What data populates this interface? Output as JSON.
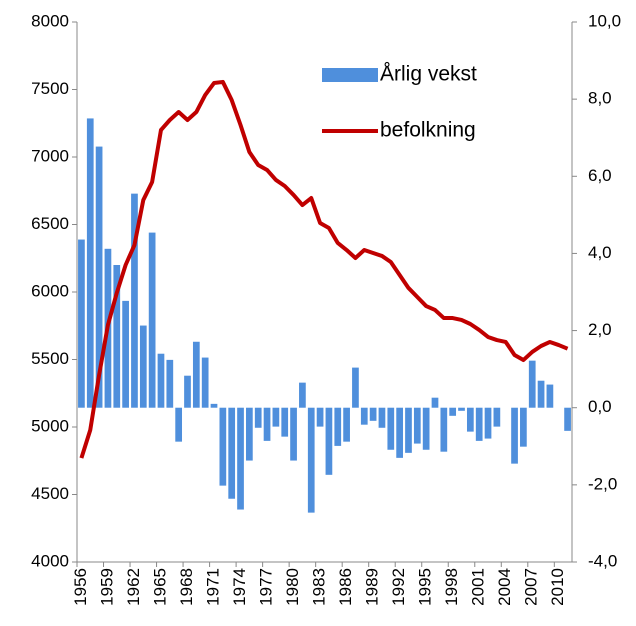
{
  "chart_data": {
    "type": "bar-line",
    "categories": [
      "1956",
      null,
      null,
      "1959",
      null,
      null,
      "1962",
      null,
      null,
      "1965",
      null,
      null,
      "1968",
      null,
      null,
      "1971",
      null,
      null,
      "1974",
      null,
      null,
      "1977",
      null,
      null,
      "1980",
      null,
      null,
      "1983",
      null,
      null,
      "1986",
      null,
      null,
      "1989",
      null,
      null,
      "1992",
      null,
      null,
      "1995",
      null,
      null,
      "1998",
      null,
      null,
      "2001",
      null,
      null,
      "2004",
      null,
      null,
      "2007",
      null,
      null,
      "2010",
      null
    ],
    "series": [
      {
        "name": "Årlig vekst",
        "type": "bar",
        "axis": "y2",
        "color": "#4f8fdc",
        "values": [
          4.36,
          7.5,
          6.77,
          4.12,
          3.7,
          2.77,
          5.55,
          2.13,
          4.54,
          1.4,
          1.24,
          -0.88,
          0.83,
          1.71,
          1.3,
          0.1,
          -2.02,
          -2.36,
          -2.64,
          -1.37,
          -0.52,
          -0.86,
          -0.49,
          -0.75,
          -1.37,
          0.65,
          -2.72,
          -0.49,
          -1.74,
          -0.99,
          -0.88,
          1.04,
          -0.44,
          -0.34,
          -0.52,
          -1.09,
          -1.3,
          -1.17,
          -0.93,
          -1.09,
          0.26,
          -1.14,
          -0.21,
          -0.08,
          -0.62,
          -0.86,
          -0.8,
          -0.49,
          0,
          -1.45,
          -1.01,
          1.22,
          0.7,
          0.6,
          0,
          -0.6
        ]
      },
      {
        "name": "befolkning",
        "type": "line",
        "color": "#c00000",
        "values": [
          4770,
          4978,
          5385,
          5756,
          5993,
          6200,
          6348,
          6681,
          6815,
          7200,
          7274,
          7333,
          7274,
          7333,
          7459,
          7548,
          7556,
          7422,
          7237,
          7037,
          6941,
          6904,
          6830,
          6785,
          6719,
          6644,
          6696,
          6511,
          6474,
          6363,
          6311,
          6252,
          6311,
          6289,
          6267,
          6222,
          6126,
          6030,
          5963,
          5896,
          5867,
          5807,
          5807,
          5793,
          5763,
          5719,
          5667,
          5644,
          5630,
          5533,
          5496,
          5556,
          5600,
          5630,
          5607,
          5580
        ]
      }
    ],
    "ylim": [
      4000,
      8000
    ],
    "yticks": [
      4000,
      4500,
      5000,
      5500,
      6000,
      6500,
      7000,
      7500,
      8000
    ],
    "y2lim": [
      -4,
      10
    ],
    "y2ticks": [
      {
        "value": -4,
        "label": "-4,0"
      },
      {
        "value": -2,
        "label": "-2,0"
      },
      {
        "value": 0,
        "label": "0,0"
      },
      {
        "value": 2,
        "label": "2,0"
      },
      {
        "value": 4,
        "label": "4,0"
      },
      {
        "value": 6,
        "label": "6,0"
      },
      {
        "value": 8,
        "label": "8,0"
      },
      {
        "value": 10,
        "label": "10,0"
      }
    ],
    "legend": "upper-right"
  }
}
